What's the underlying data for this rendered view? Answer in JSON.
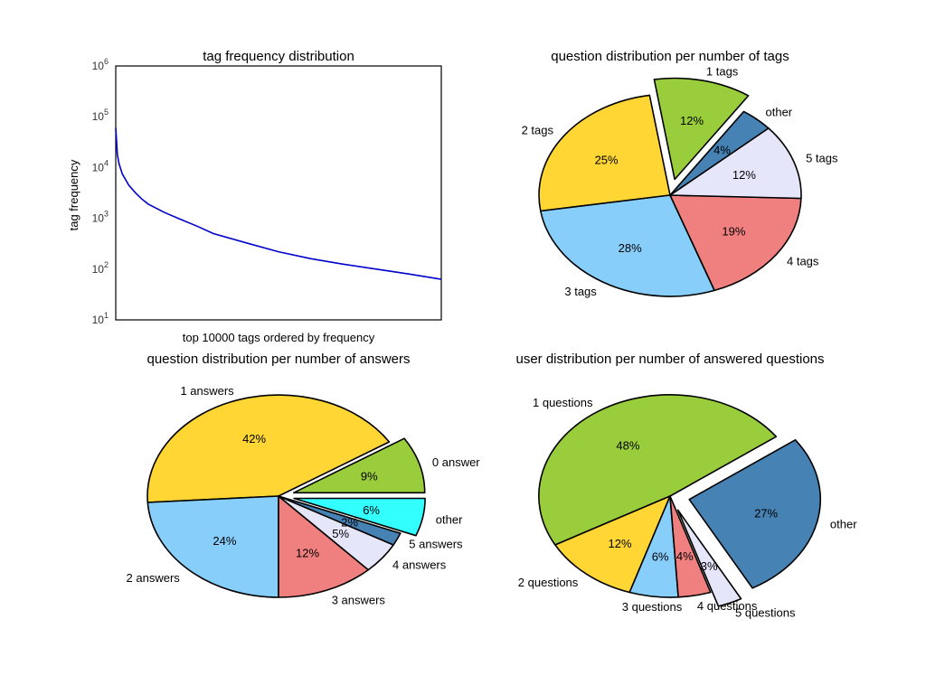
{
  "chart_data": [
    {
      "id": "tag-frequency",
      "type": "line",
      "title": "tag frequency distribution",
      "xlabel": "top 10000 tags ordered by frequency",
      "ylabel": "tag frequency",
      "yscale": "log",
      "ylim": [
        10,
        1000000
      ],
      "xlim": [
        0,
        10000
      ],
      "yticks": [
        {
          "base": "10",
          "exp": "1",
          "value": 10
        },
        {
          "base": "10",
          "exp": "2",
          "value": 100
        },
        {
          "base": "10",
          "exp": "3",
          "value": 1000
        },
        {
          "base": "10",
          "exp": "4",
          "value": 10000
        },
        {
          "base": "10",
          "exp": "5",
          "value": 100000
        },
        {
          "base": "10",
          "exp": "6",
          "value": 1000000
        }
      ],
      "grid": false,
      "series": [
        {
          "color": "#0000cc",
          "x": [
            1,
            50,
            100,
            200,
            400,
            600,
            800,
            1000,
            1500,
            2000,
            2500,
            3000,
            4000,
            5000,
            6000,
            7000,
            8000,
            9000,
            10000
          ],
          "y": [
            60000,
            18000,
            12000,
            7500,
            4500,
            3200,
            2400,
            1900,
            1300,
            950,
            700,
            500,
            330,
            220,
            160,
            125,
            100,
            80,
            63
          ]
        }
      ]
    },
    {
      "id": "tags-pie",
      "type": "pie",
      "title": "question distribution per number of tags",
      "slices": [
        {
          "label": "1 tags",
          "pct": "12%",
          "value": 12,
          "color": "#9acd3c",
          "explode": true
        },
        {
          "label": "2 tags",
          "pct": "25%",
          "value": 25,
          "color": "#ffd633"
        },
        {
          "label": "3 tags",
          "pct": "28%",
          "value": 28,
          "color": "#87cefa"
        },
        {
          "label": "4 tags",
          "pct": "19%",
          "value": 19,
          "color": "#f08080"
        },
        {
          "label": "5 tags",
          "pct": "12%",
          "value": 12,
          "color": "#e6e6fa"
        },
        {
          "label": "other",
          "pct": "4%",
          "value": 4,
          "color": "#4682b4"
        }
      ]
    },
    {
      "id": "answers-pie",
      "type": "pie",
      "title": "question distribution per number of answers",
      "slices": [
        {
          "label": "0 answer",
          "pct": "9%",
          "value": 9,
          "color": "#9acd3c",
          "explode": true
        },
        {
          "label": "1 answers",
          "pct": "42%",
          "value": 42,
          "color": "#ffd633"
        },
        {
          "label": "2 answers",
          "pct": "24%",
          "value": 24,
          "color": "#87cefa"
        },
        {
          "label": "3 answers",
          "pct": "12%",
          "value": 12,
          "color": "#f08080"
        },
        {
          "label": "4 answers",
          "pct": "5%",
          "value": 5,
          "color": "#e6e6fa"
        },
        {
          "label": "5 answers",
          "pct": "2%",
          "value": 2,
          "color": "#4682b4"
        },
        {
          "label": "other",
          "pct": "6%",
          "value": 6,
          "color": "#33ffff",
          "explode": true
        }
      ]
    },
    {
      "id": "users-pie",
      "type": "pie",
      "title": "user distribution per number of answered questions",
      "slices": [
        {
          "label": "1 questions",
          "pct": "48%",
          "value": 48,
          "color": "#9acd3c"
        },
        {
          "label": "2 questions",
          "pct": "12%",
          "value": 12,
          "color": "#ffd633"
        },
        {
          "label": "3 questions",
          "pct": "6%",
          "value": 6,
          "color": "#87cefa"
        },
        {
          "label": "4 questions",
          "pct": "4%",
          "value": 4,
          "color": "#f08080"
        },
        {
          "label": "5 questions",
          "pct": "3%",
          "value": 3,
          "color": "#e6e6fa",
          "explode": true
        },
        {
          "label": "other",
          "pct": "27%",
          "value": 27,
          "color": "#4682b4",
          "explode": true
        }
      ]
    }
  ]
}
